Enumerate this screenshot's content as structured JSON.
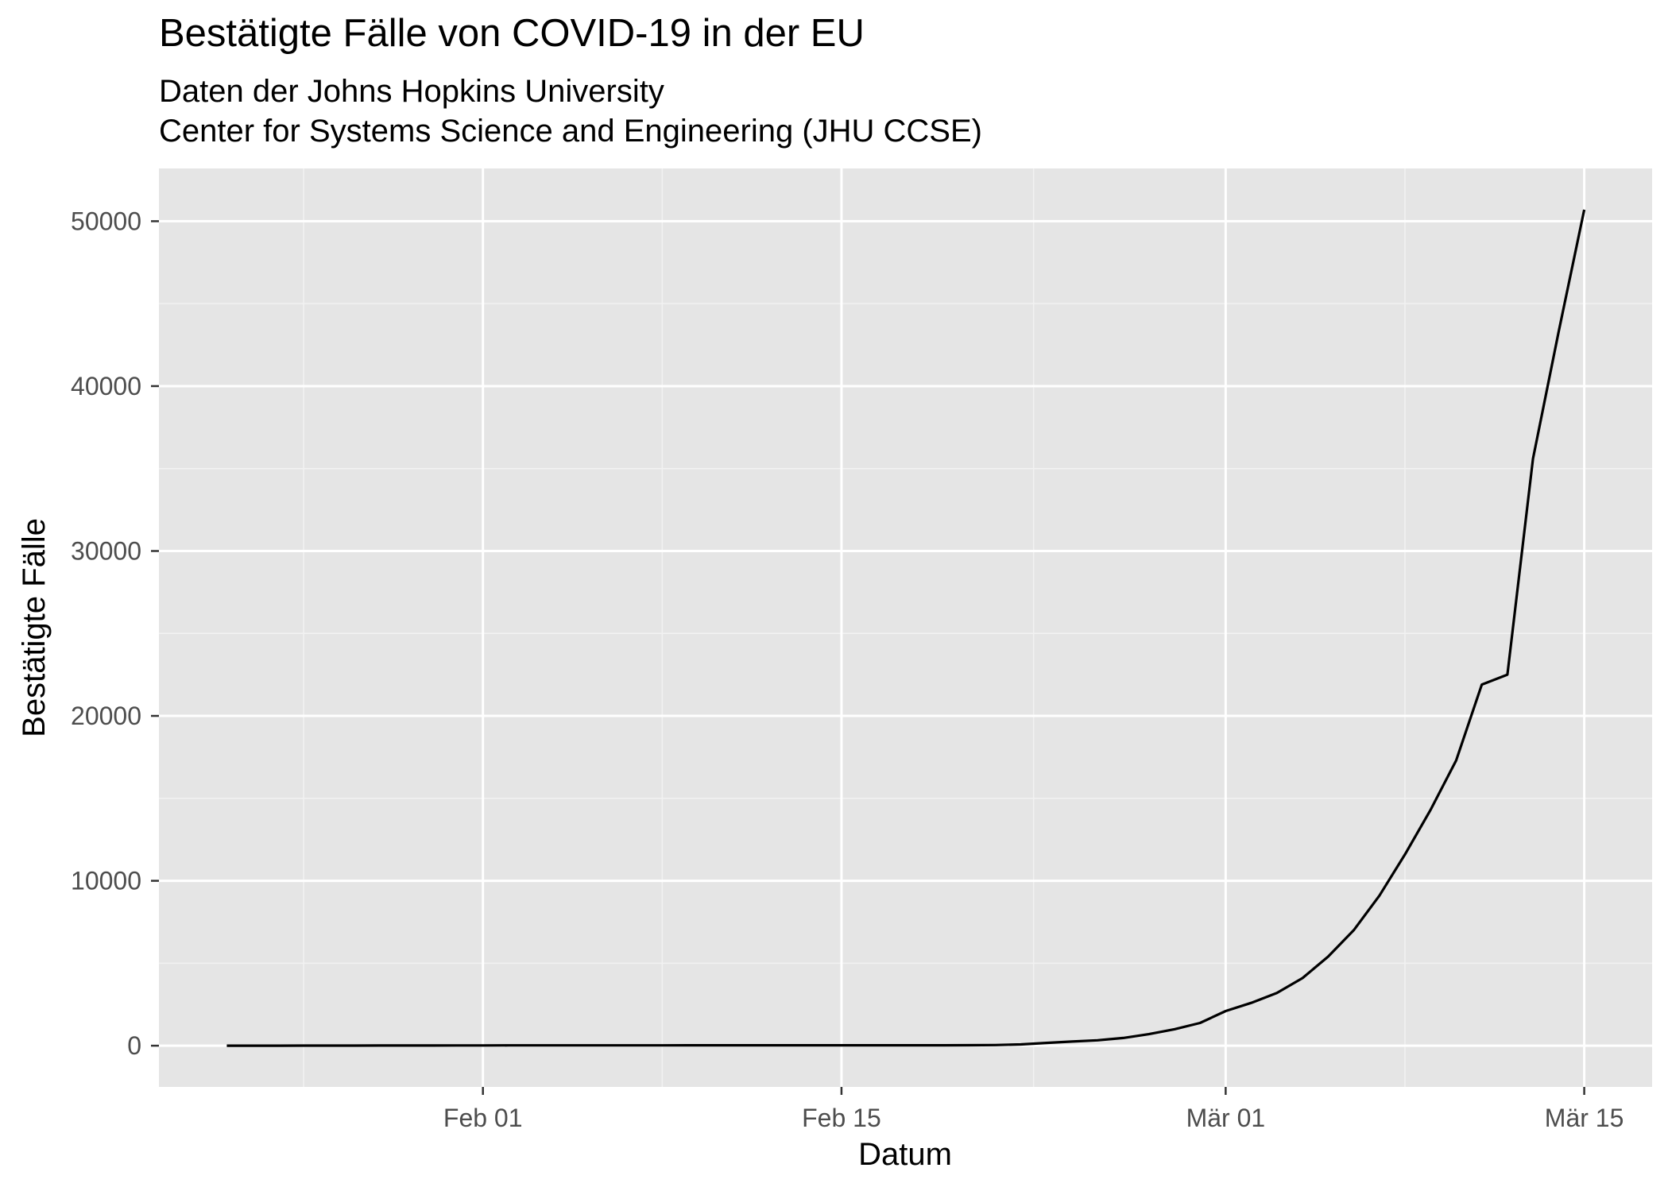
{
  "chart_data": {
    "type": "line",
    "title": "Bestätigte Fälle von COVID-19 in der EU",
    "subtitle_lines": [
      "Daten der Johns Hopkins University",
      "Center for Systems Science and Engineering (JHU CCSE)"
    ],
    "xlabel": "Datum",
    "ylabel": "Bestätigte Fälle",
    "x_tick_labels": [
      "Feb 01",
      "Feb 15",
      "Mär 01",
      "Mär 15"
    ],
    "y_tick_labels": [
      "0",
      "10000",
      "20000",
      "30000",
      "40000",
      "50000"
    ],
    "ylim": [
      -2500,
      53200
    ],
    "grid": true,
    "series": [
      {
        "x": [
          "2020-01-22",
          "2020-01-23",
          "2020-01-24",
          "2020-01-25",
          "2020-01-26",
          "2020-01-27",
          "2020-01-28",
          "2020-01-29",
          "2020-01-30",
          "2020-01-31",
          "2020-02-01",
          "2020-02-02",
          "2020-02-03",
          "2020-02-04",
          "2020-02-05",
          "2020-02-06",
          "2020-02-07",
          "2020-02-08",
          "2020-02-09",
          "2020-02-10",
          "2020-02-11",
          "2020-02-12",
          "2020-02-13",
          "2020-02-14",
          "2020-02-15",
          "2020-02-16",
          "2020-02-17",
          "2020-02-18",
          "2020-02-19",
          "2020-02-20",
          "2020-02-21",
          "2020-02-22",
          "2020-02-23",
          "2020-02-24",
          "2020-02-25",
          "2020-02-26",
          "2020-02-27",
          "2020-02-28",
          "2020-02-29",
          "2020-03-01",
          "2020-03-02",
          "2020-03-03",
          "2020-03-04",
          "2020-03-05",
          "2020-03-06",
          "2020-03-07",
          "2020-03-08",
          "2020-03-09",
          "2020-03-10",
          "2020-03-11",
          "2020-03-12",
          "2020-03-13",
          "2020-03-14",
          "2020-03-15"
        ],
        "values": [
          0,
          0,
          3,
          4,
          4,
          4,
          8,
          10,
          12,
          15,
          17,
          19,
          19,
          19,
          20,
          21,
          22,
          22,
          23,
          25,
          26,
          26,
          26,
          26,
          27,
          27,
          27,
          27,
          27,
          29,
          40,
          80,
          170,
          250,
          330,
          470,
          700,
          1000,
          1380,
          2100,
          2600,
          3200,
          4100,
          5400,
          7000,
          9100,
          11600,
          14300,
          17300,
          21900,
          22500,
          35600,
          43300,
          50700
        ]
      }
    ]
  }
}
